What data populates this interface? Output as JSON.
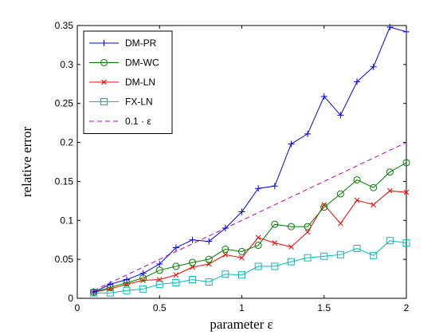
{
  "chart_data": {
    "type": "line",
    "title": "",
    "xlabel": "parameter ε",
    "ylabel": "relative error",
    "xlim": [
      0,
      2
    ],
    "ylim": [
      0,
      0.35
    ],
    "xticks": [
      0,
      0.5,
      1,
      1.5,
      2
    ],
    "xtick_labels": [
      "0",
      "0.5",
      "1",
      "1.5",
      "2"
    ],
    "yticks": [
      0,
      0.05,
      0.1,
      0.15,
      0.2,
      0.25,
      0.3,
      0.35
    ],
    "ytick_labels": [
      "0",
      "0.05",
      "0.1",
      "0.15",
      "0.2",
      "0.25",
      "0.3",
      "0.35"
    ],
    "grid": false,
    "legend_position": "top-left",
    "series": [
      {
        "name": "DM-PR",
        "color": "#0000ff",
        "marker": "plus",
        "x": [
          0.1,
          0.2,
          0.3,
          0.4,
          0.5,
          0.6,
          0.7,
          0.8,
          0.9,
          1.0,
          1.1,
          1.2,
          1.3,
          1.4,
          1.5,
          1.6,
          1.7,
          1.8,
          1.9,
          2.0
        ],
        "y": [
          0.008,
          0.018,
          0.024,
          0.032,
          0.044,
          0.065,
          0.075,
          0.073,
          0.09,
          0.111,
          0.141,
          0.144,
          0.198,
          0.211,
          0.259,
          0.235,
          0.278,
          0.297,
          0.348,
          0.342
        ]
      },
      {
        "name": "DM-WC",
        "color": "#008000",
        "marker": "circle",
        "x": [
          0.1,
          0.2,
          0.3,
          0.4,
          0.5,
          0.6,
          0.7,
          0.8,
          0.9,
          1.0,
          1.1,
          1.2,
          1.3,
          1.4,
          1.5,
          1.6,
          1.7,
          1.8,
          1.9,
          2.0
        ],
        "y": [
          0.008,
          0.014,
          0.02,
          0.026,
          0.036,
          0.041,
          0.046,
          0.05,
          0.063,
          0.06,
          0.068,
          0.095,
          0.092,
          0.092,
          0.117,
          0.134,
          0.152,
          0.142,
          0.162,
          0.174
        ]
      },
      {
        "name": "DM-LN",
        "color": "#ff0000",
        "marker": "x",
        "x": [
          0.1,
          0.2,
          0.3,
          0.4,
          0.5,
          0.6,
          0.7,
          0.8,
          0.9,
          1.0,
          1.1,
          1.2,
          1.3,
          1.4,
          1.5,
          1.6,
          1.7,
          1.8,
          1.9,
          2.0
        ],
        "y": [
          0.008,
          0.012,
          0.018,
          0.023,
          0.024,
          0.03,
          0.04,
          0.044,
          0.056,
          0.052,
          0.078,
          0.071,
          0.066,
          0.085,
          0.12,
          0.096,
          0.126,
          0.12,
          0.138,
          0.136
        ]
      },
      {
        "name": "FX-LN",
        "color": "#00bfbf",
        "marker": "square",
        "x": [
          0.1,
          0.2,
          0.3,
          0.4,
          0.5,
          0.6,
          0.7,
          0.8,
          0.9,
          1.0,
          1.1,
          1.2,
          1.3,
          1.4,
          1.5,
          1.6,
          1.7,
          1.8,
          1.9,
          2.0
        ],
        "y": [
          0.007,
          0.007,
          0.01,
          0.012,
          0.018,
          0.02,
          0.024,
          0.021,
          0.031,
          0.03,
          0.041,
          0.041,
          0.047,
          0.052,
          0.054,
          0.056,
          0.064,
          0.055,
          0.074,
          0.071
        ]
      },
      {
        "name": "0.1 · ε",
        "color": "#bf00bf",
        "marker": "none",
        "dashed": true,
        "x": [
          0.1,
          2.0
        ],
        "y": [
          0.01,
          0.2
        ]
      }
    ]
  }
}
